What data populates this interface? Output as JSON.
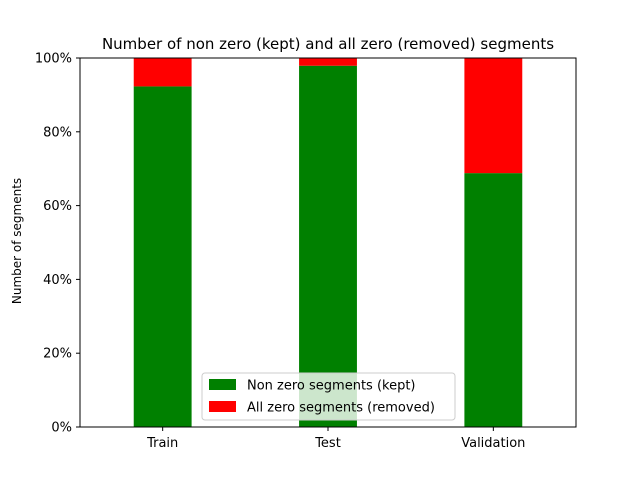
{
  "chart_data": {
    "type": "bar",
    "stacked": true,
    "title": "Number of non zero (kept) and all zero (removed) segments",
    "xlabel": "",
    "ylabel": "Number of segments",
    "categories": [
      "Train",
      "Test",
      "Validation"
    ],
    "series": [
      {
        "name": "Non zero segments (kept)",
        "color": "#008000",
        "values": [
          92.3,
          97.9,
          68.8
        ]
      },
      {
        "name": "All zero segments (removed)",
        "color": "#ff0000",
        "values": [
          7.7,
          2.1,
          31.2
        ]
      }
    ],
    "ylim": [
      0,
      100
    ],
    "yticks": [
      0,
      20,
      40,
      60,
      80,
      100
    ],
    "ytick_format": "percent",
    "grid": false,
    "legend_position": "lower center"
  }
}
